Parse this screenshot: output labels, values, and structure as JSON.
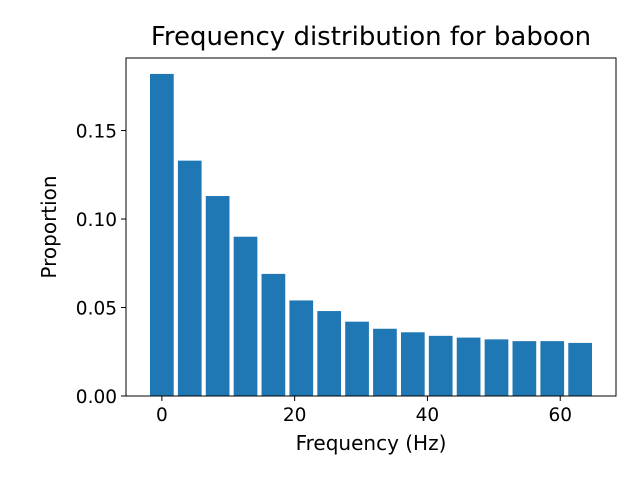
{
  "chart_data": {
    "type": "bar",
    "title": "Frequency distribution for baboon",
    "xlabel": "Frequency (Hz)",
    "ylabel": "Proportion",
    "x": [
      0,
      4.2,
      8.4,
      12.6,
      16.8,
      21,
      25.2,
      29.4,
      33.6,
      37.8,
      42,
      46.2,
      50.4,
      54.6,
      58.8,
      63
    ],
    "values": [
      0.182,
      0.133,
      0.113,
      0.09,
      0.069,
      0.054,
      0.048,
      0.042,
      0.038,
      0.036,
      0.034,
      0.033,
      0.032,
      0.031,
      0.031,
      0.03
    ],
    "xlim": [
      -5.4,
      68.4
    ],
    "ylim": [
      0,
      0.191
    ],
    "x_ticks": [
      0,
      20,
      40,
      60
    ],
    "x_tick_labels": [
      "0",
      "20",
      "40",
      "60"
    ],
    "y_ticks": [
      0,
      0.05,
      0.1,
      0.15
    ],
    "y_tick_labels": [
      "0.00",
      "0.05",
      "0.10",
      "0.15"
    ],
    "bar_color": "#1f77b4",
    "grid": false,
    "legend": "none"
  }
}
